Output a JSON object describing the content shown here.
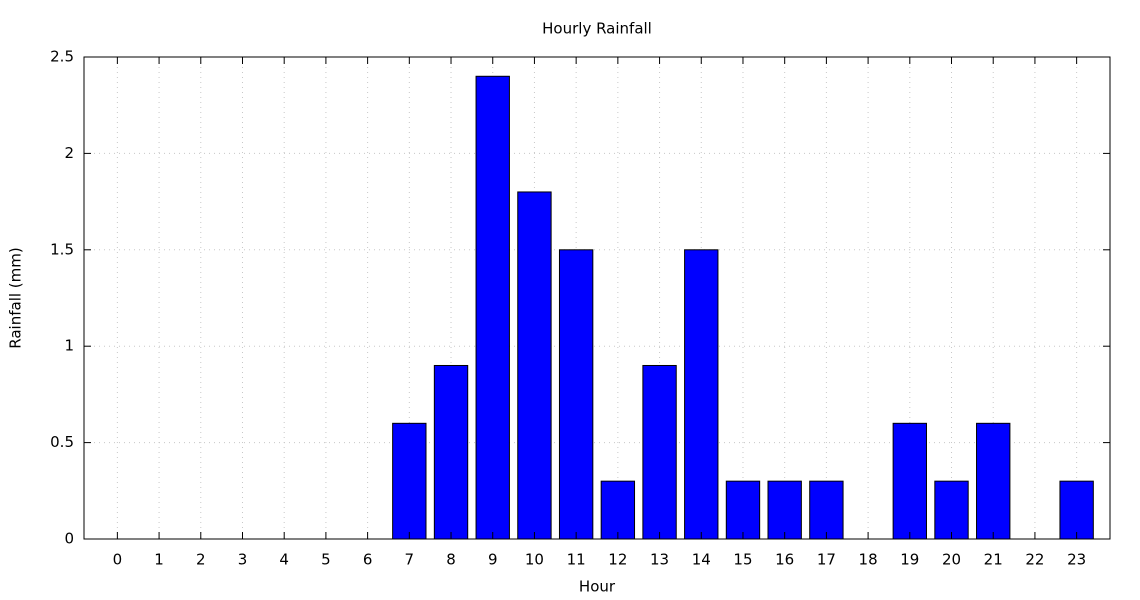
{
  "chart_data": {
    "type": "bar",
    "title": "Hourly Rainfall",
    "x_label": "Hour",
    "y_label": "Rainfall (mm)",
    "x": [
      0,
      1,
      2,
      3,
      4,
      5,
      6,
      7,
      8,
      9,
      10,
      11,
      12,
      13,
      14,
      15,
      16,
      17,
      18,
      19,
      20,
      21,
      22,
      23
    ],
    "values": [
      0,
      0,
      0,
      0,
      0,
      0,
      0,
      0.6,
      0.9,
      2.4,
      1.8,
      1.5,
      0.3,
      0.9,
      1.5,
      0.3,
      0.3,
      0.3,
      0,
      0.6,
      0.3,
      0.6,
      0,
      0.3
    ],
    "color": "#0000ff",
    "xlim": [
      -0.8,
      23.8
    ],
    "xticks": [
      0,
      1,
      2,
      3,
      4,
      5,
      6,
      7,
      8,
      9,
      10,
      11,
      12,
      13,
      14,
      15,
      16,
      17,
      18,
      19,
      20,
      21,
      22,
      23
    ],
    "ylim": [
      0,
      2.5
    ],
    "yticks": [
      0,
      0.5,
      1,
      1.5,
      2,
      2.5
    ],
    "grid": true
  }
}
